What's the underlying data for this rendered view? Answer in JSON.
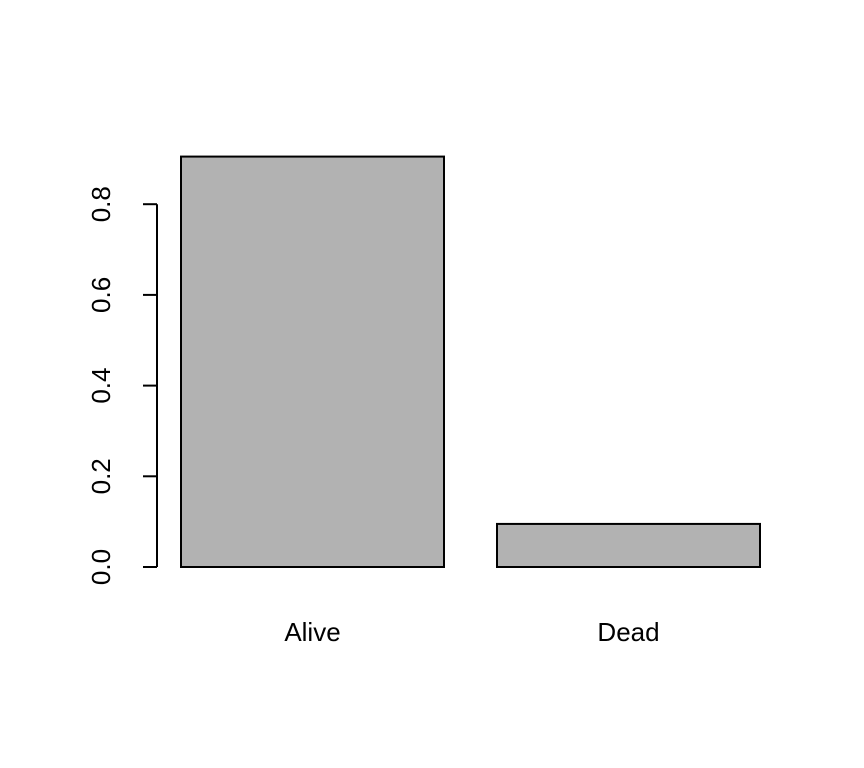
{
  "chart_data": {
    "type": "bar",
    "categories": [
      "Alive",
      "Dead"
    ],
    "values": [
      0.905,
      0.095
    ],
    "yticks": [
      0.0,
      0.2,
      0.4,
      0.6,
      0.8
    ],
    "ytick_labels": [
      "0.0",
      "0.2",
      "0.4",
      "0.6",
      "0.8"
    ],
    "ylim": [
      0,
      0.905
    ],
    "bar_color": "#b2b2b2",
    "grid": false,
    "legend": "none"
  }
}
